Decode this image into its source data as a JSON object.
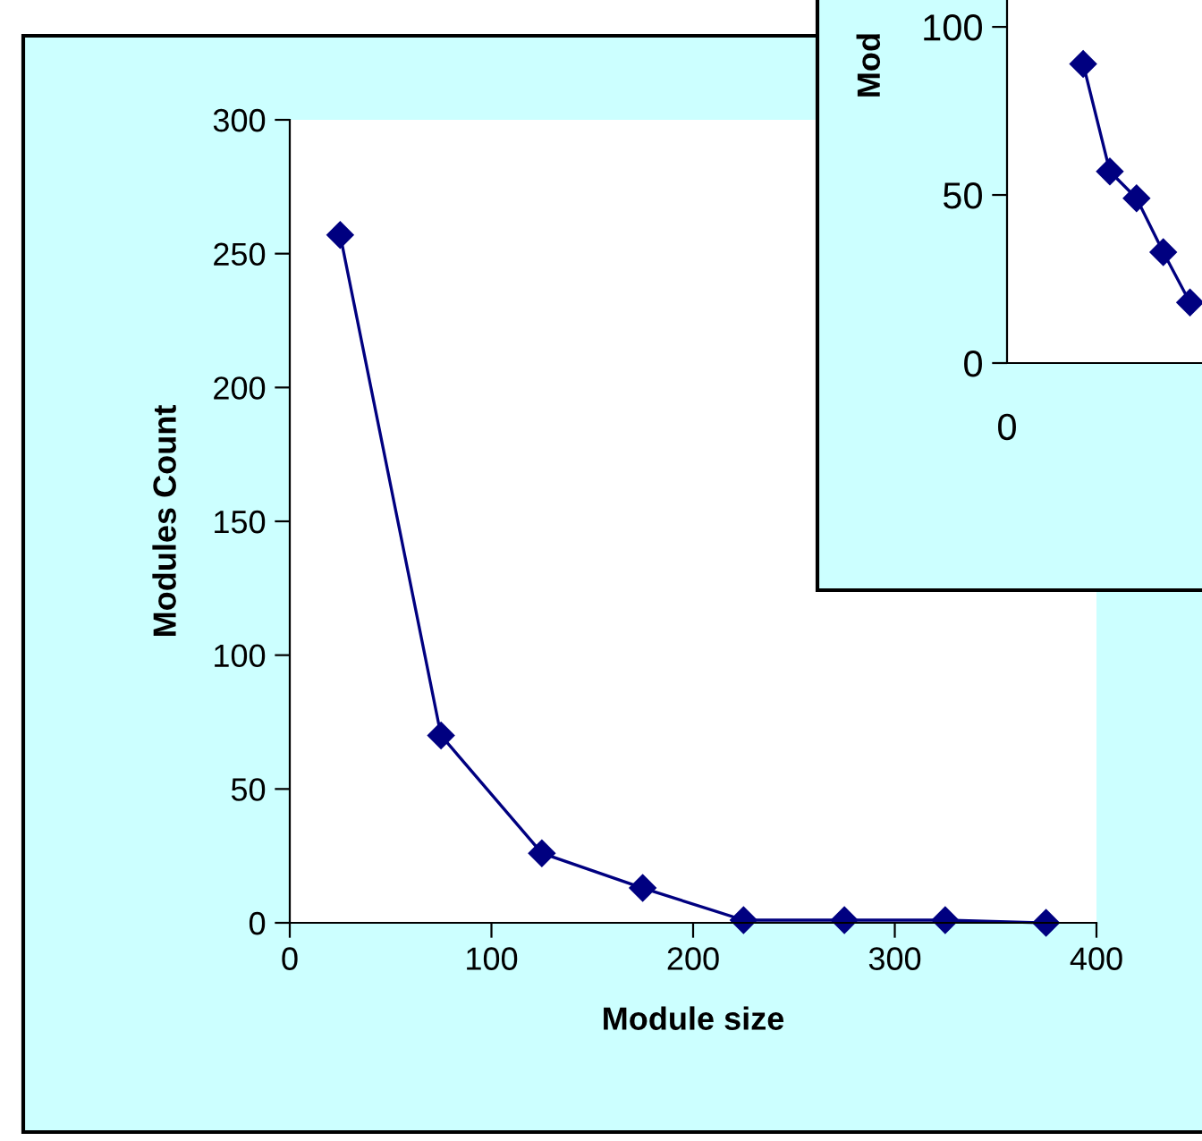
{
  "chart_data": [
    {
      "type": "line",
      "xlabel": "Module size",
      "ylabel": "Modules Count",
      "x": [
        25,
        75,
        125,
        175,
        225,
        275,
        325,
        375
      ],
      "series": [
        {
          "color": "#000080",
          "values": [
            257,
            70,
            26,
            13,
            1,
            1,
            1,
            0
          ]
        }
      ],
      "xlim": [
        0,
        400
      ],
      "ylim": [
        0,
        300
      ],
      "xticks": [
        0,
        100,
        200,
        300,
        400
      ],
      "yticks": [
        0,
        50,
        100,
        150,
        200,
        250,
        300
      ],
      "marker": "diamond",
      "line_style": "solid",
      "grid": false,
      "legend": false
    },
    {
      "type": "line",
      "ylabel": "Mod",
      "categories": [
        null,
        null,
        null,
        null,
        null
      ],
      "series": [
        {
          "color": "#000080",
          "values": [
            89,
            57,
            49,
            33,
            18
          ]
        }
      ],
      "ylim": [
        0,
        108
      ],
      "yticks": [
        0,
        50,
        100
      ],
      "annotations": [
        "0"
      ],
      "marker": "diamond",
      "line_style": "solid",
      "grid": false,
      "legend": false
    }
  ]
}
